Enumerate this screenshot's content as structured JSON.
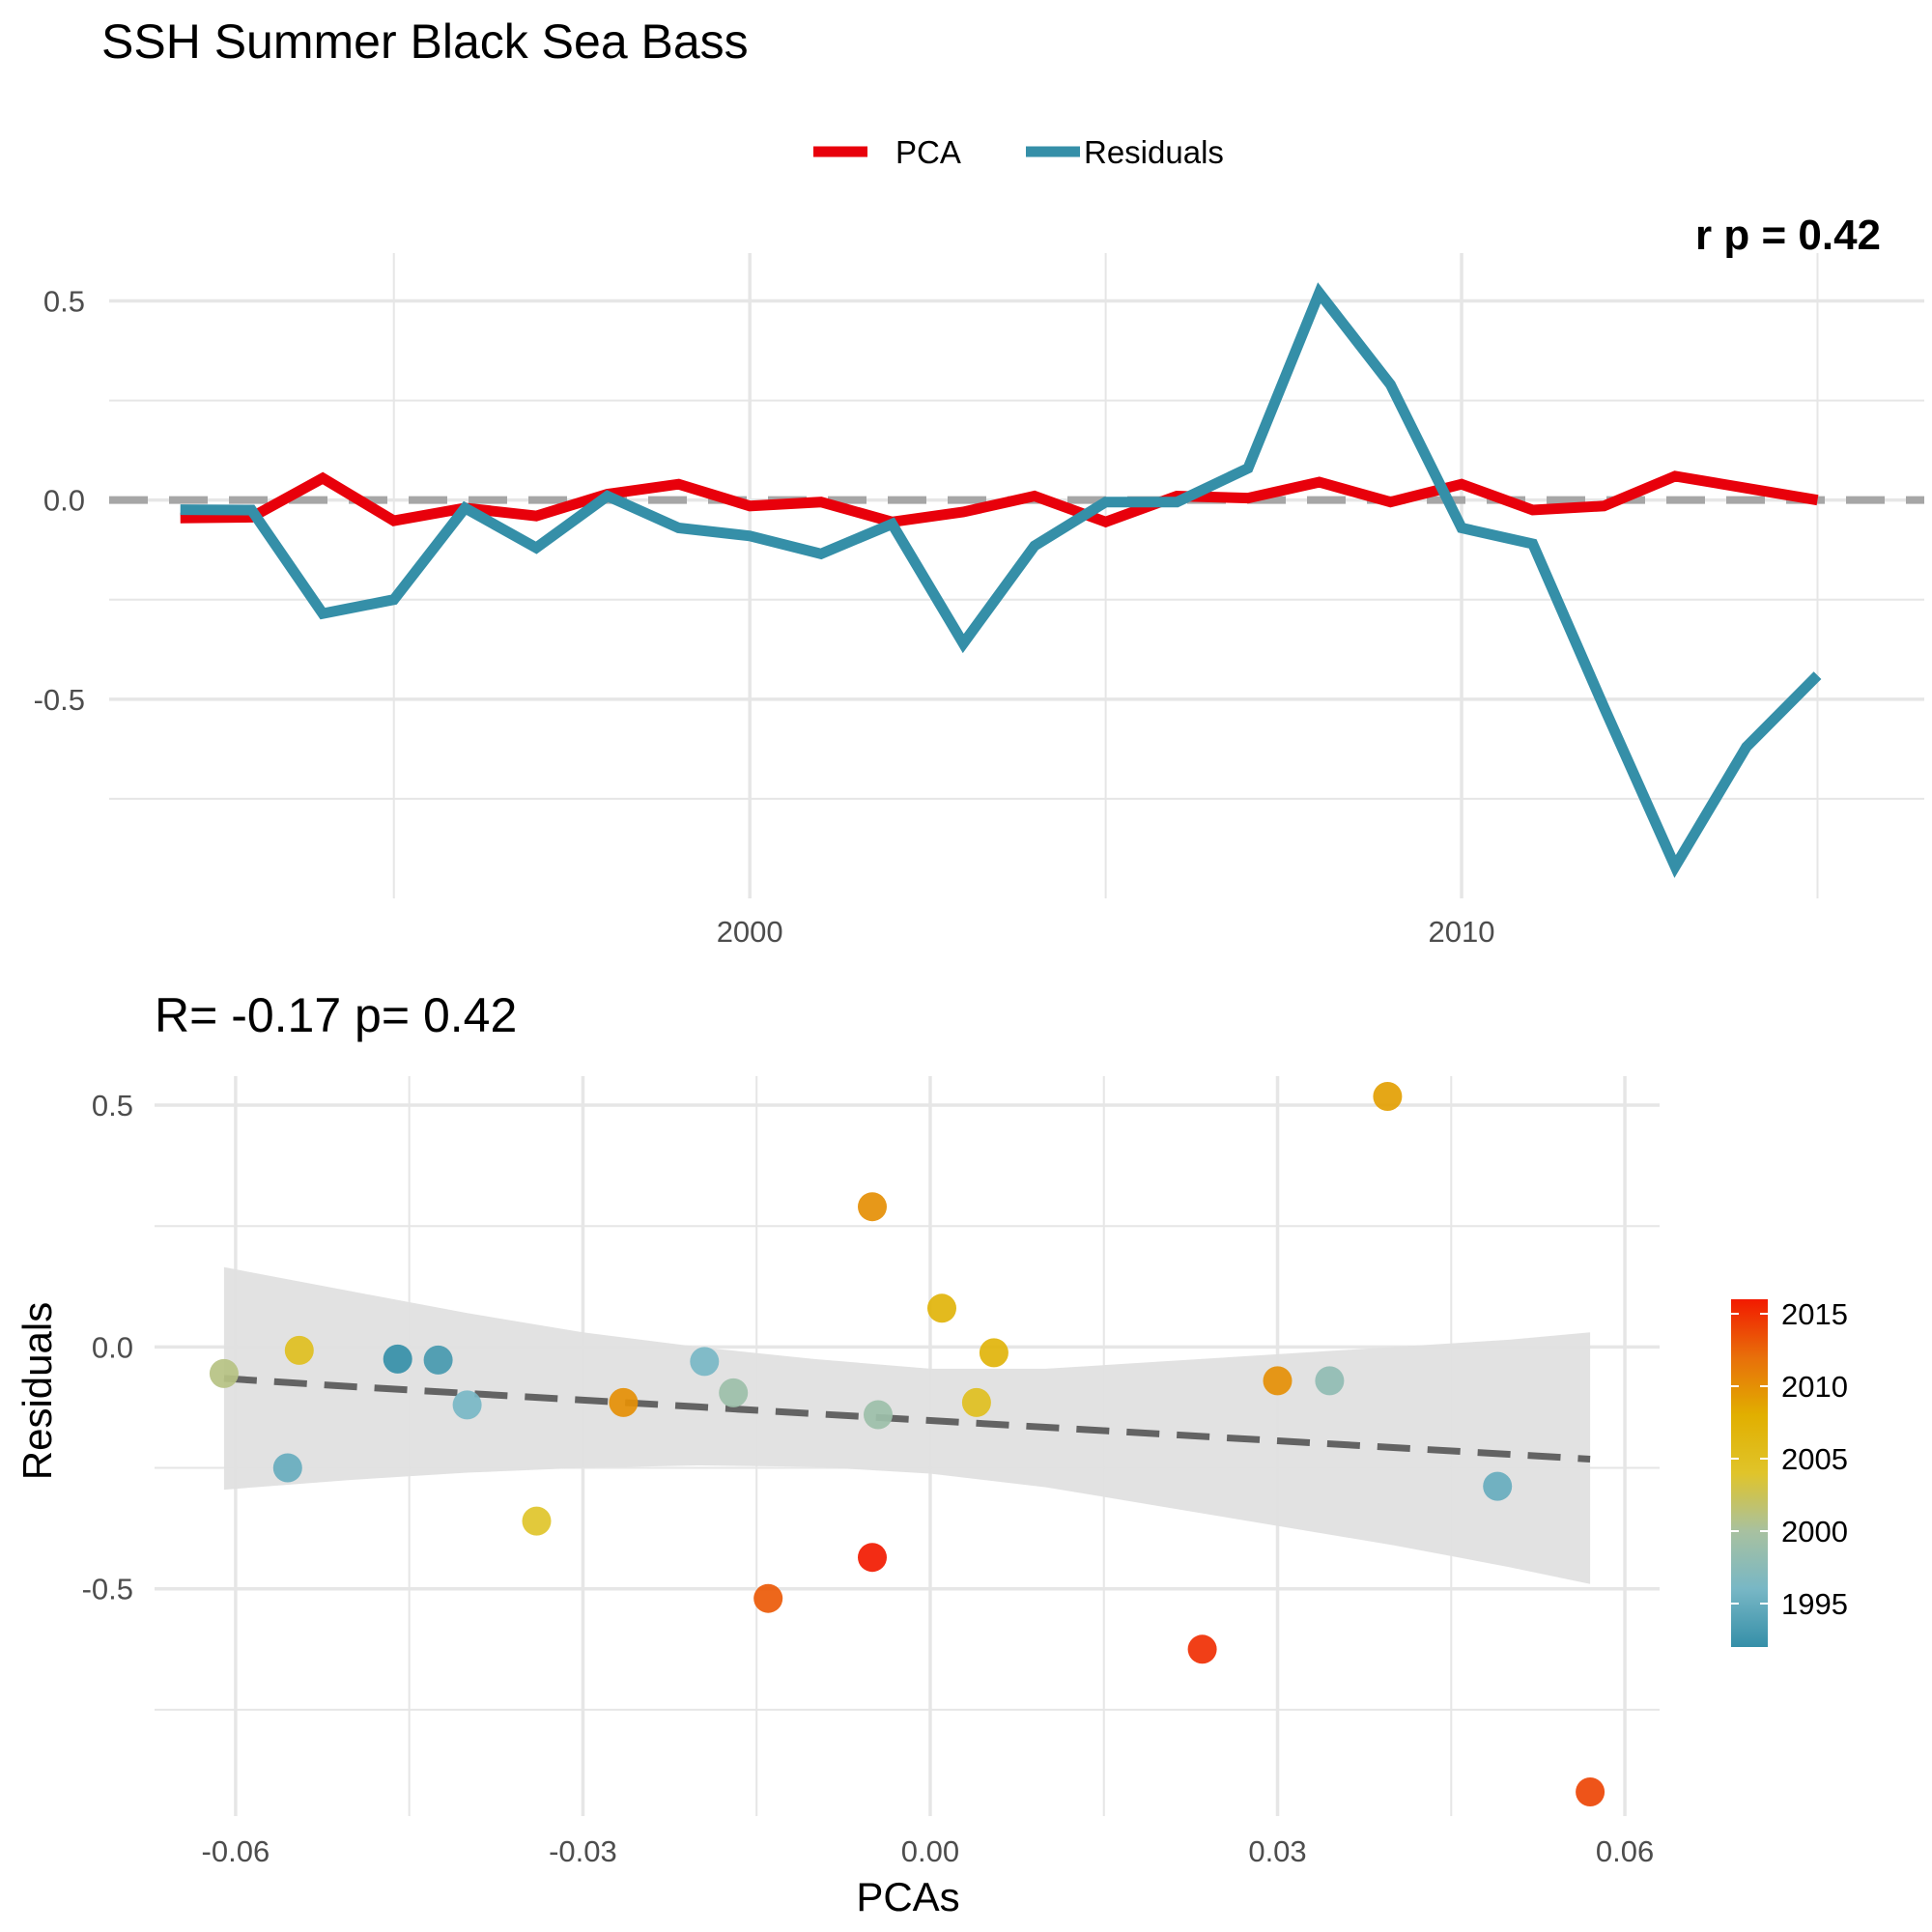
{
  "title": "SSH Summer Black Sea Bass",
  "colors": {
    "pca": "#e8000b",
    "residuals": "#358fa8",
    "zero_line": "#a6a6a6",
    "grid": "#e6e6e6",
    "ribbon": "#e0e0e0",
    "trend": "#636363",
    "gradient": [
      "#358fa8",
      "#78b7c5",
      "#a8c1a0",
      "#e0c42a",
      "#e1af00",
      "#e86f0a",
      "#f21a00"
    ]
  },
  "chart_data": [
    {
      "type": "line",
      "legend": {
        "position": "top",
        "entries": [
          "PCA",
          "Residuals"
        ]
      },
      "corner_annotation": "r p = 0.42",
      "x_ticks": [
        2000,
        2010
      ],
      "x_minor_ticks": [
        1995,
        2005,
        2015
      ],
      "xlim": [
        1991,
        2016.5
      ],
      "y_ticks": [
        "0.5",
        "0.0",
        "-0.5"
      ],
      "y_tick_values": [
        0.5,
        0.0,
        -0.5
      ],
      "y_minor_ticks": [
        0.25,
        -0.25,
        -0.75
      ],
      "ylim": [
        -1.0,
        0.62
      ],
      "grid": true,
      "zero_line": true,
      "x": [
        1992,
        1993,
        1994,
        1995,
        1996,
        1997,
        1998,
        1999,
        2000,
        2001,
        2002,
        2003,
        2004,
        2005,
        2006,
        2007,
        2008,
        2009,
        2010,
        2011,
        2012,
        2013,
        2014,
        2015,
        2016
      ],
      "series": [
        {
          "name": "PCA",
          "values": [
            -0.045,
            -0.043,
            0.055,
            -0.052,
            -0.02,
            -0.04,
            0.015,
            0.04,
            -0.015,
            -0.005,
            -0.055,
            -0.03,
            0.01,
            -0.055,
            0.01,
            0.005,
            0.045,
            -0.005,
            0.04,
            -0.025,
            -0.015,
            0.06,
            0.03,
            0.0,
            null
          ]
        },
        {
          "name": "Residuals",
          "values": [
            -0.024,
            -0.025,
            -0.285,
            -0.25,
            -0.02,
            -0.12,
            0.01,
            -0.07,
            -0.09,
            -0.135,
            -0.06,
            -0.36,
            -0.115,
            -0.005,
            -0.005,
            0.08,
            0.52,
            0.29,
            -0.07,
            -0.11,
            -0.52,
            -0.92,
            -0.62,
            -0.44,
            null
          ]
        }
      ]
    },
    {
      "type": "scatter",
      "subtitle": "R= -0.17  p= 0.42",
      "xlabel": "PCAs",
      "ylabel": "Residuals",
      "x_ticks": [
        "-0.06",
        "-0.03",
        "0.00",
        "0.03",
        "0.06"
      ],
      "x_tick_values": [
        -0.06,
        -0.03,
        0.0,
        0.03,
        0.06
      ],
      "x_minor_ticks": [
        -0.045,
        -0.015,
        0.015,
        0.045
      ],
      "xlim": [
        -0.067,
        0.063
      ],
      "y_ticks": [
        "0.5",
        "0.0",
        "-0.5"
      ],
      "y_tick_values": [
        0.5,
        0.0,
        -0.5
      ],
      "y_minor_ticks": [
        0.25,
        -0.25,
        -0.75
      ],
      "ylim": [
        -0.97,
        0.56
      ],
      "grid": true,
      "colorbar": {
        "position": "right",
        "ticks": [
          "2015",
          "2010",
          "2005",
          "2000",
          "1995"
        ],
        "tick_values": [
          2015,
          2010,
          2005,
          2000,
          1995
        ],
        "range": [
          1992,
          2016
        ]
      },
      "points": [
        {
          "x": -0.046,
          "y": -0.025,
          "year": 1992
        },
        {
          "x": -0.0425,
          "y": -0.027,
          "year": 1993
        },
        {
          "x": -0.0555,
          "y": -0.25,
          "year": 1995
        },
        {
          "x": 0.049,
          "y": -0.288,
          "year": 1995
        },
        {
          "x": -0.04,
          "y": -0.12,
          "year": 1996
        },
        {
          "x": -0.0195,
          "y": -0.03,
          "year": 1996
        },
        {
          "x": 0.0345,
          "y": -0.07,
          "year": 1998
        },
        {
          "x": -0.017,
          "y": -0.095,
          "year": 1999
        },
        {
          "x": -0.0045,
          "y": -0.14,
          "year": 1999
        },
        {
          "x": -0.061,
          "y": -0.055,
          "year": 2001
        },
        {
          "x": -0.034,
          "y": -0.36,
          "year": 2004
        },
        {
          "x": -0.0545,
          "y": -0.007,
          "year": 2005
        },
        {
          "x": 0.004,
          "y": -0.115,
          "year": 2005
        },
        {
          "x": 0.0055,
          "y": -0.012,
          "year": 2007
        },
        {
          "x": 0.001,
          "y": 0.08,
          "year": 2007
        },
        {
          "x": 0.0395,
          "y": 0.518,
          "year": 2009
        },
        {
          "x": -0.005,
          "y": 0.29,
          "year": 2010
        },
        {
          "x": -0.0265,
          "y": -0.115,
          "year": 2010
        },
        {
          "x": 0.03,
          "y": -0.07,
          "year": 2010
        },
        {
          "x": -0.014,
          "y": -0.52,
          "year": 2013
        },
        {
          "x": 0.057,
          "y": -0.92,
          "year": 2014
        },
        {
          "x": 0.0235,
          "y": -0.625,
          "year": 2015
        },
        {
          "x": -0.005,
          "y": -0.435,
          "year": 2016
        }
      ],
      "fit": {
        "x": [
          -0.061,
          -0.05,
          -0.04,
          -0.03,
          -0.02,
          -0.01,
          0.0,
          0.01,
          0.02,
          0.03,
          0.04,
          0.05,
          0.057
        ],
        "y": [
          -0.065,
          -0.082,
          -0.096,
          -0.11,
          -0.124,
          -0.138,
          -0.152,
          -0.166,
          -0.18,
          -0.194,
          -0.208,
          -0.222,
          -0.232
        ],
        "lower": [
          -0.295,
          -0.275,
          -0.26,
          -0.25,
          -0.245,
          -0.248,
          -0.262,
          -0.29,
          -0.33,
          -0.37,
          -0.41,
          -0.455,
          -0.49
        ],
        "upper": [
          0.165,
          0.115,
          0.07,
          0.03,
          0.0,
          -0.025,
          -0.045,
          -0.045,
          -0.03,
          -0.015,
          0.0,
          0.015,
          0.03
        ]
      }
    }
  ]
}
